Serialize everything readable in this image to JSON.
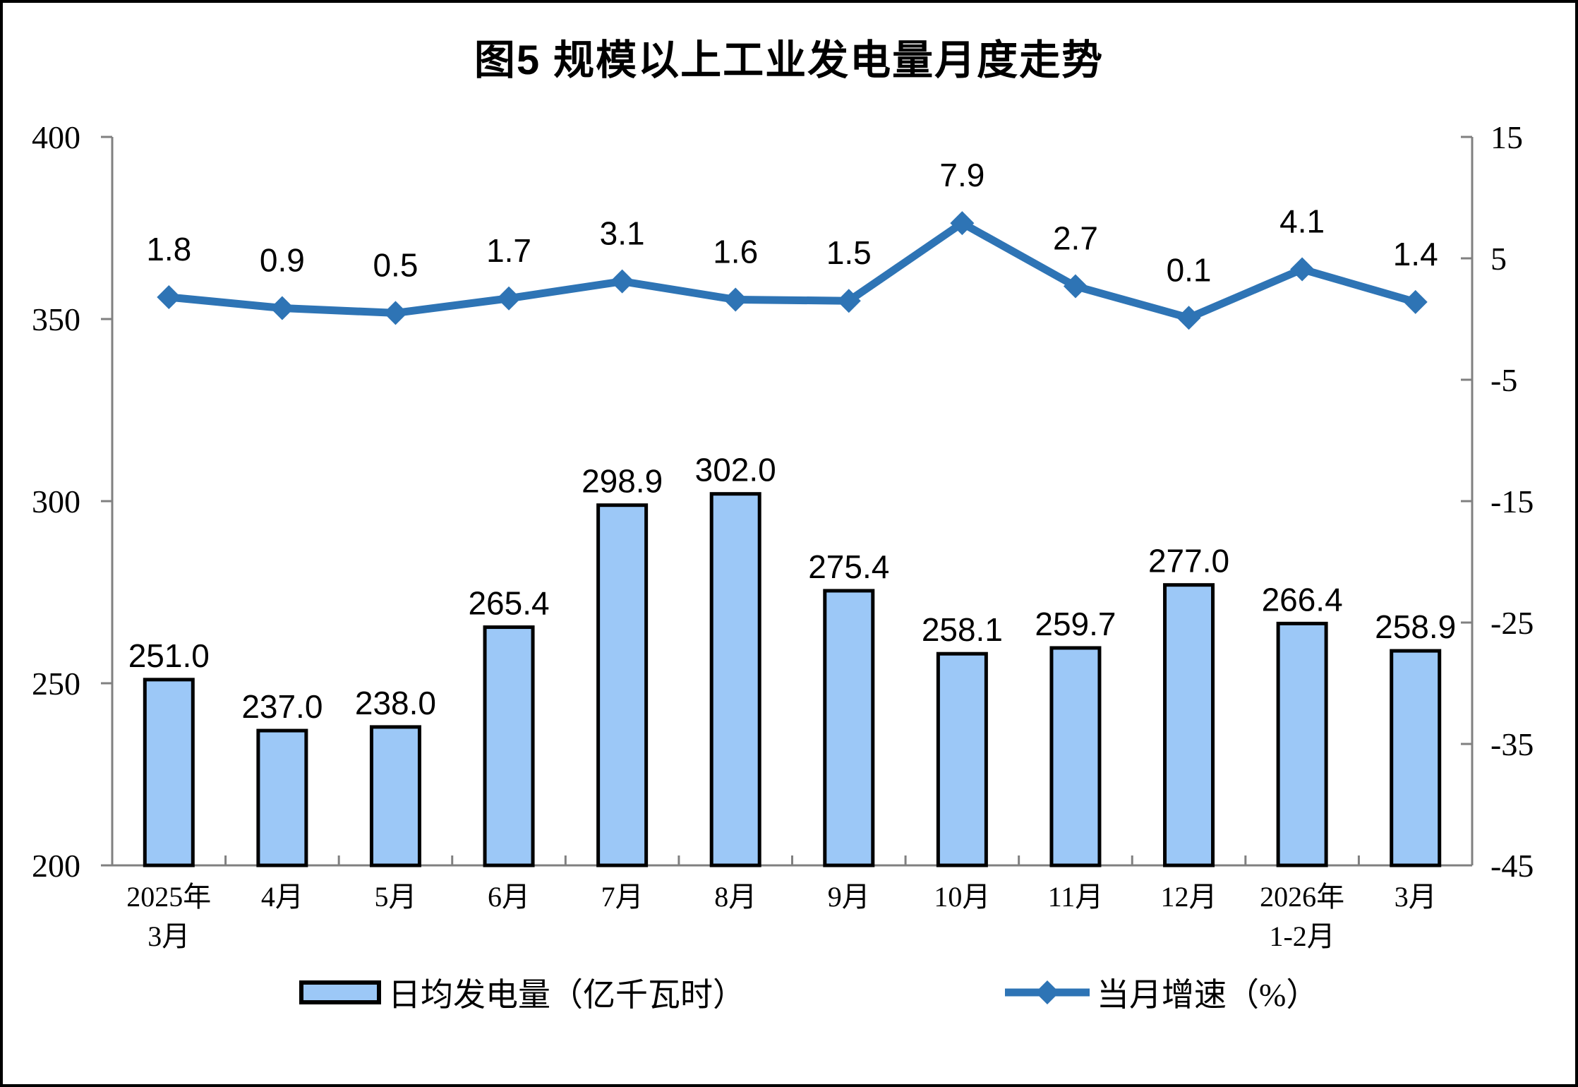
{
  "chart_data": {
    "type": "combo-bar-line",
    "title": "图5 规模以上工业发电量月度走势",
    "categories": [
      "2025年\n3月",
      "4月",
      "5月",
      "6月",
      "7月",
      "8月",
      "9月",
      "10月",
      "11月",
      "12月",
      "2026年\n1-2月",
      "3月"
    ],
    "series": [
      {
        "name": "日均发电量（亿千瓦时）",
        "type": "bar",
        "axis": "left",
        "color": "#9CC8F7",
        "border_color": "#000000",
        "values": [
          251.0,
          237.0,
          238.0,
          265.4,
          298.9,
          302.0,
          275.4,
          258.1,
          259.7,
          277.0,
          266.4,
          258.9
        ],
        "value_labels": [
          "251.0",
          "237.0",
          "238.0",
          "265.4",
          "298.9",
          "302.0",
          "275.4",
          "258.1",
          "259.7",
          "277.0",
          "266.4",
          "258.9"
        ]
      },
      {
        "name": "当月增速（%）",
        "type": "line",
        "axis": "right",
        "color": "#2E74B5",
        "marker": "diamond",
        "values": [
          1.8,
          0.9,
          0.5,
          1.7,
          3.1,
          1.6,
          1.5,
          7.9,
          2.7,
          0.1,
          4.1,
          1.4
        ],
        "value_labels": [
          "1.8",
          "0.9",
          "0.5",
          "1.7",
          "3.1",
          "1.6",
          "1.5",
          "7.9",
          "2.7",
          "0.1",
          "4.1",
          "1.4"
        ]
      }
    ],
    "left_axis": {
      "min": 200,
      "max": 400,
      "step": 50,
      "tick_labels": [
        "400",
        "350",
        "300",
        "250",
        "200"
      ]
    },
    "right_axis": {
      "min": -45,
      "max": 15,
      "step": 10,
      "tick_labels": [
        "15",
        "5",
        "-5",
        "-15",
        "-25",
        "-35",
        "-45"
      ]
    },
    "grid": false,
    "legend_position": "bottom",
    "axis_color": "#808080",
    "text_color": "#000000"
  }
}
